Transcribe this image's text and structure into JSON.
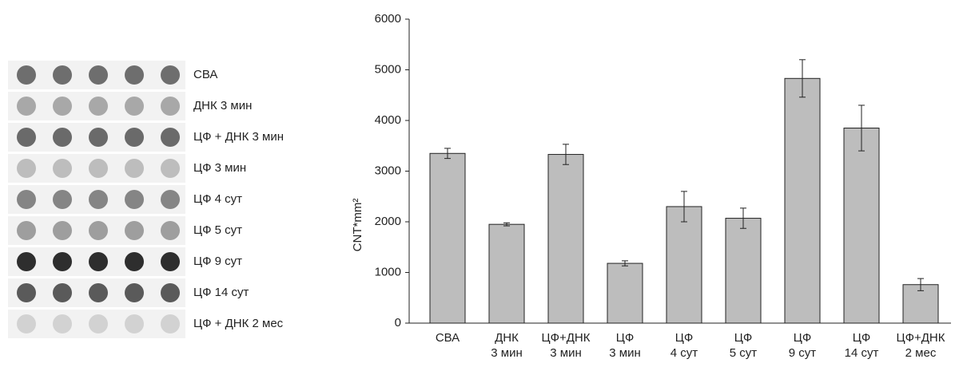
{
  "blot": {
    "labels": [
      "СВА",
      "ДНК 3 мин",
      "ЦФ + ДНК 3 мин",
      "ЦФ 3 мин",
      "ЦФ 4 сут",
      "ЦФ 5 сут",
      "ЦФ 9 сут",
      "ЦФ 14 сут",
      "ЦФ + ДНК 2 мес"
    ],
    "colors": [
      "#6e6e6e",
      "#a8a8a8",
      "#6a6a6a",
      "#bdbdbd",
      "#858585",
      "#9e9e9e",
      "#2e2e2e",
      "#5a5a5a",
      "#d2d2d2"
    ]
  },
  "chart_data": {
    "type": "bar",
    "y_label": "CNT*mm²",
    "categories": [
      [
        "СВА"
      ],
      [
        "ДНК",
        "3 мин"
      ],
      [
        "ЦФ+ДНК",
        "3 мин"
      ],
      [
        "ЦФ",
        "3 мин"
      ],
      [
        "ЦФ",
        "4 сут"
      ],
      [
        "ЦФ",
        "5 сут"
      ],
      [
        "ЦФ",
        "9 сут"
      ],
      [
        "ЦФ",
        "14 сут"
      ],
      [
        "ЦФ+ДНК",
        "2 мес"
      ]
    ],
    "values": [
      3350,
      1950,
      3330,
      1180,
      2300,
      2070,
      4830,
      3850,
      760
    ],
    "errors": [
      100,
      30,
      200,
      50,
      300,
      200,
      370,
      450,
      120
    ],
    "color": "#bdbdbd",
    "ylim": [
      0,
      6000
    ],
    "yticks": [
      0,
      1000,
      2000,
      3000,
      4000,
      5000,
      6000
    ]
  }
}
